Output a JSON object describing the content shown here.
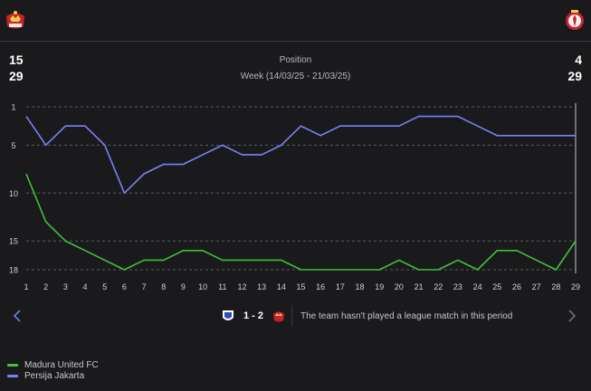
{
  "header": {
    "left_stat_top": "15",
    "left_stat_bottom": "29",
    "right_stat_top": "4",
    "right_stat_bottom": "29",
    "title": "Position",
    "period": "Week (14/03/25 - 21/03/25)"
  },
  "colors": {
    "madura": "#3fc23c",
    "persija": "#7b82f3",
    "grid": "#5a5a60",
    "marker": "#8a8a90"
  },
  "chart_data": {
    "type": "line",
    "x": [
      1,
      2,
      3,
      4,
      5,
      6,
      7,
      8,
      9,
      10,
      11,
      12,
      13,
      14,
      15,
      16,
      17,
      18,
      19,
      20,
      21,
      22,
      23,
      24,
      25,
      26,
      27,
      28,
      29
    ],
    "yticks": [
      1,
      5,
      10,
      15,
      18
    ],
    "ylim": [
      1,
      18
    ],
    "y_inverted": true,
    "grid": "dashed-horizontal",
    "legend_position": "bottom-left",
    "series": [
      {
        "name": "Madura United FC",
        "values": [
          8,
          13,
          15,
          16,
          17,
          18,
          17,
          17,
          16,
          16,
          17,
          17,
          17,
          17,
          18,
          18,
          18,
          18,
          18,
          17,
          18,
          18,
          17,
          18,
          16,
          16,
          17,
          18,
          15
        ]
      },
      {
        "name": "Persija Jakarta",
        "values": [
          2,
          5,
          3,
          3,
          5,
          10,
          8,
          7,
          7,
          6,
          5,
          6,
          6,
          5,
          3,
          4,
          3,
          3,
          3,
          3,
          2,
          2,
          2,
          3,
          4,
          4,
          4,
          4,
          4
        ]
      }
    ]
  },
  "match": {
    "score": "1 - 2",
    "message": "The team hasn't played a league match in this period"
  },
  "icons": {
    "prev": "chevron-left-icon",
    "next": "chevron-right-icon"
  }
}
